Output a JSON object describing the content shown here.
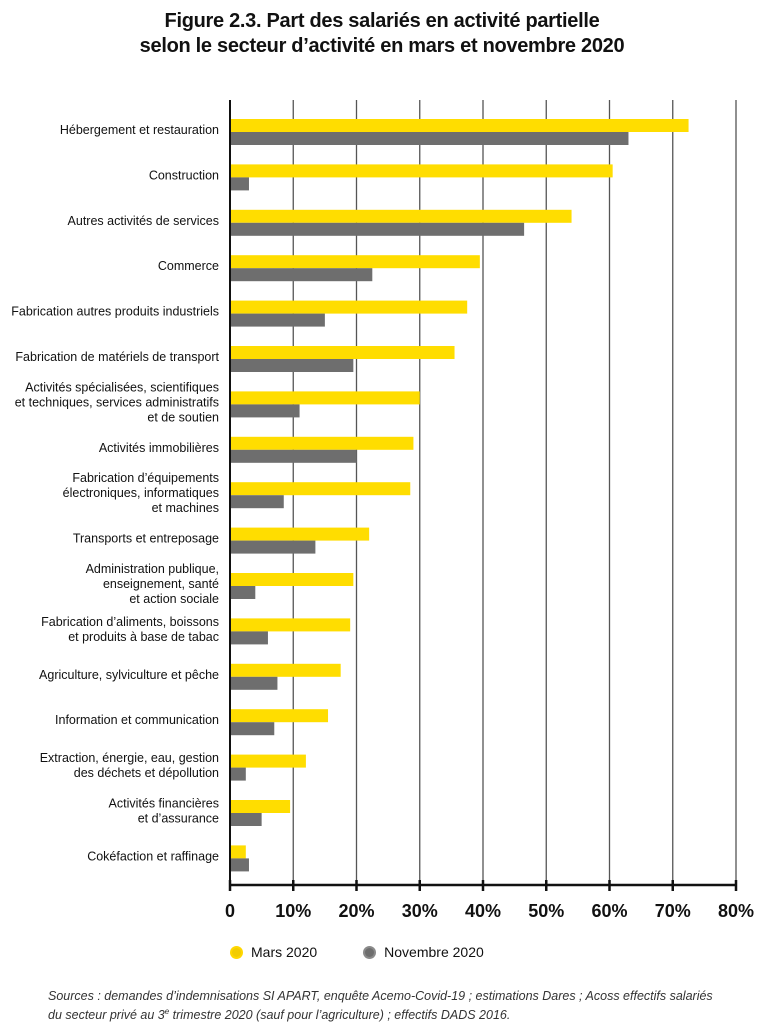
{
  "title_line1": "Figure 2.3. Part des salariés en activité partielle",
  "title_line2": "selon le secteur d’activité en mars et novembre 2020",
  "legend": {
    "mars": "Mars 2020",
    "novembre": "Novembre 2020"
  },
  "source_line1": "Sources : demandes d’indemnisations SI APART, enquête Acemo-Covid-19 ; estimations Dares ; Acoss effectifs salariés",
  "source_line2": "du secteur privé au 3e trimestre 2020 (sauf pour l’agriculture) ; effectifs DADS 2016.",
  "colors": {
    "mars": "#ffdd00",
    "novembre": "#6e6e6e",
    "grid": "#555555",
    "axis": "#111111"
  },
  "chart_data": {
    "type": "bar",
    "orientation": "horizontal",
    "title": "Figure 2.3. Part des salariés en activité partielle selon le secteur d’activité en mars et novembre 2020",
    "xlim": [
      0,
      80
    ],
    "xticks": [
      "0",
      "10%",
      "20%",
      "30%",
      "40%",
      "50%",
      "60%",
      "70%",
      "80%"
    ],
    "grid": true,
    "legend_position": "bottom",
    "categories": [
      "Hébergement et restauration",
      "Construction",
      "Autres activités de services",
      "Commerce",
      "Fabrication autres produits industriels",
      "Fabrication de matériels de transport",
      "Activités spécialisées, scientifiques\net techniques, services administratifs\net de soutien",
      "Activités immobilières",
      "Fabrication d’équipements\nélectroniques, informatiques\net machines",
      "Transports et entreposage",
      "Administration publique,\nenseignement, santé\net action sociale",
      "Fabrication d’aliments, boissons\net produits à base de tabac",
      "Agriculture, sylviculture et pêche",
      "Information et communication",
      "Extraction, énergie, eau, gestion\ndes déchets et dépollution",
      "Activités financières\net d’assurance",
      "Cokéfaction et raffinage"
    ],
    "series": [
      {
        "name": "Mars 2020",
        "values": [
          72.5,
          60.5,
          54,
          39.5,
          37.5,
          35.5,
          30,
          29,
          28.5,
          22,
          19.5,
          19,
          17.5,
          15.5,
          12,
          9.5,
          2.5
        ]
      },
      {
        "name": "Novembre 2020",
        "values": [
          63,
          3,
          46.5,
          22.5,
          15,
          19.5,
          11,
          20,
          8.5,
          13.5,
          4,
          6,
          7.5,
          7,
          2.5,
          5,
          3
        ]
      }
    ]
  }
}
